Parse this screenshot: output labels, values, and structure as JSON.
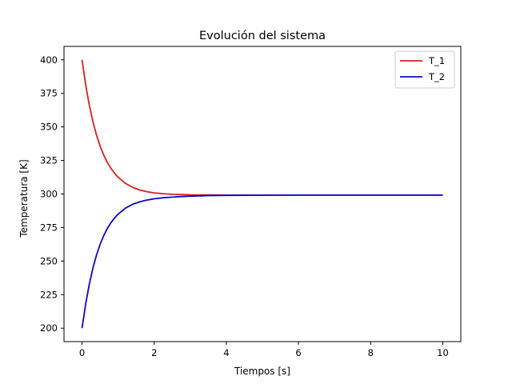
{
  "chart_data": {
    "type": "line",
    "title": "Evolución del sistema",
    "xlabel": "Tiempos [s]",
    "ylabel": "Temperatura [K]",
    "xlim": [
      -0.5,
      10.5
    ],
    "ylim": [
      190,
      410
    ],
    "xticks": [
      0,
      2,
      4,
      6,
      8,
      10
    ],
    "yticks": [
      200,
      225,
      250,
      275,
      300,
      325,
      350,
      375,
      400
    ],
    "grid": false,
    "legend": "top-right",
    "series": [
      {
        "name": "T_1",
        "color": "#d62020",
        "x": [
          0,
          0.1,
          0.2,
          0.3,
          0.4,
          0.5,
          0.6,
          0.7,
          0.8,
          0.9,
          1.0,
          1.2,
          1.4,
          1.6,
          1.8,
          2.0,
          2.25,
          2.5,
          2.75,
          3.0,
          3.5,
          4.0,
          5.0,
          6.0,
          7.0,
          8.0,
          9.0,
          10.0
        ],
        "y": [
          400,
          381.5,
          366.4,
          354.1,
          344.0,
          335.8,
          329.1,
          323.6,
          319.2,
          315.5,
          312.5,
          308.0,
          305.0,
          303.0,
          301.7,
          300.8,
          300.2,
          299.8,
          299.6,
          299.4,
          299.3,
          299.2,
          299.2,
          299.2,
          299.2,
          299.2,
          299.2,
          299.2
        ]
      },
      {
        "name": "T_2",
        "color": "#0a0ac8",
        "x": [
          0,
          0.1,
          0.2,
          0.3,
          0.4,
          0.5,
          0.6,
          0.7,
          0.8,
          0.9,
          1.0,
          1.2,
          1.4,
          1.6,
          1.8,
          2.0,
          2.25,
          2.5,
          2.75,
          3.0,
          3.5,
          4.0,
          5.0,
          6.0,
          7.0,
          8.0,
          9.0,
          10.0
        ],
        "y": [
          200,
          217.9,
          232.6,
          244.6,
          254.4,
          262.4,
          268.9,
          274.2,
          278.6,
          282.1,
          285.0,
          289.4,
          292.3,
          294.2,
          295.5,
          296.4,
          297.2,
          297.7,
          298.1,
          298.4,
          298.8,
          299.0,
          299.1,
          299.2,
          299.2,
          299.2,
          299.2,
          299.2
        ]
      }
    ]
  }
}
